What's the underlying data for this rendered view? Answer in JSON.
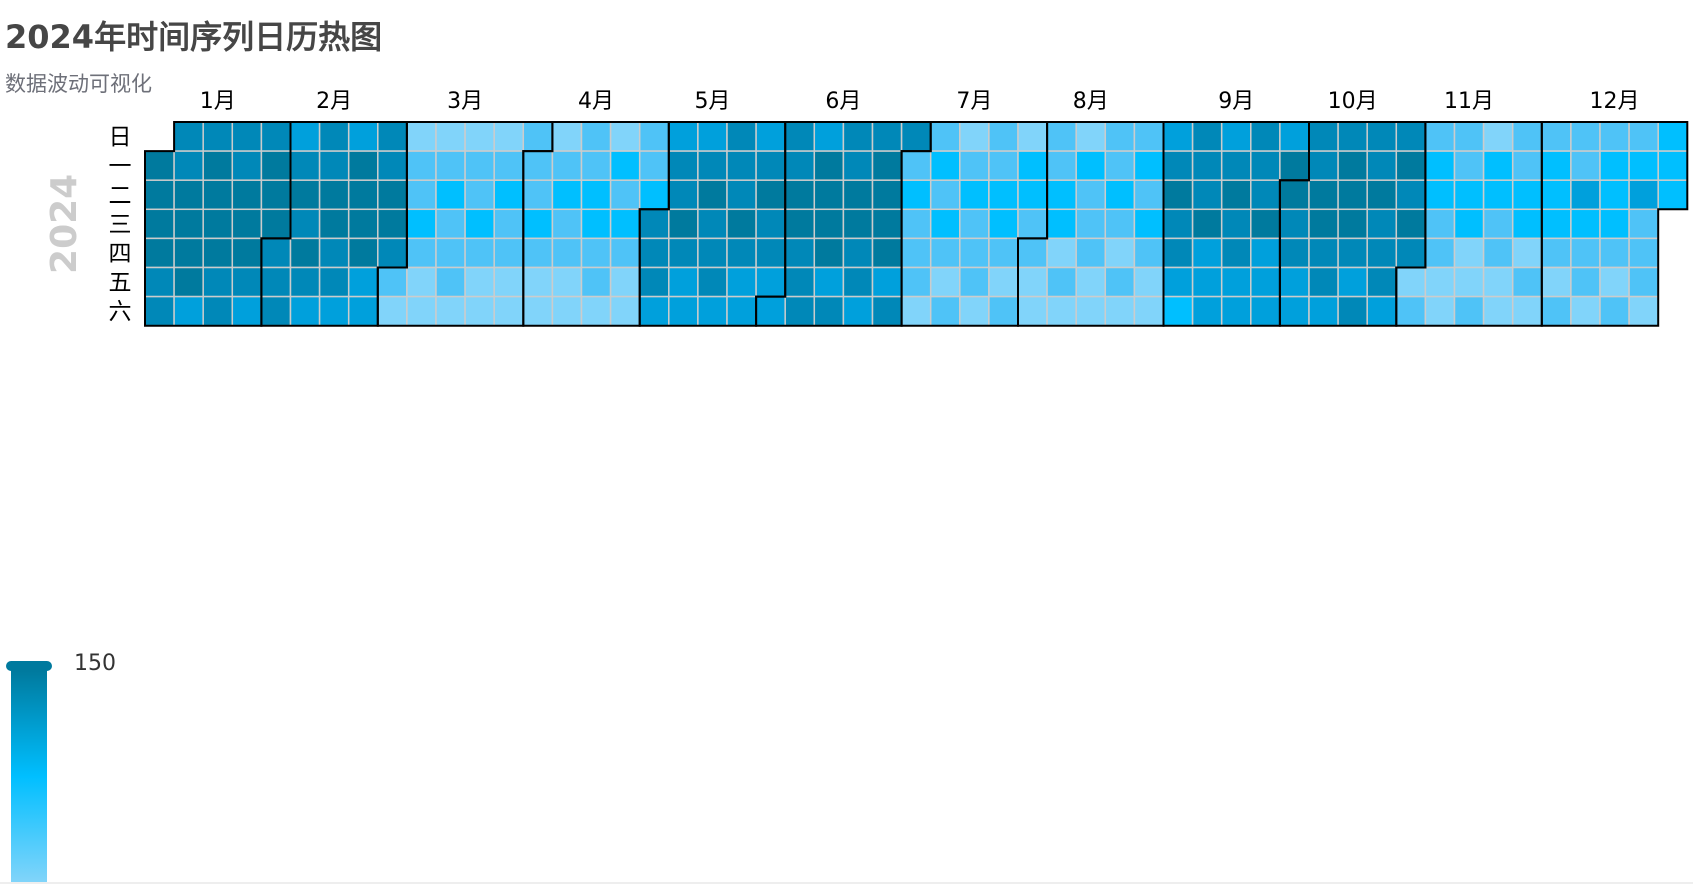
{
  "chart_data": {
    "type": "heatmap",
    "title": "2024年时间序列日历热图",
    "subtitle": "数据波动可视化",
    "year_label": "2024",
    "range": [
      "2024-01-01",
      "2024-12-31"
    ],
    "day_labels": [
      "日",
      "一",
      "二",
      "三",
      "四",
      "五",
      "六"
    ],
    "month_labels": [
      "1月",
      "2月",
      "3月",
      "4月",
      "5月",
      "6月",
      "7月",
      "8月",
      "9月",
      "10月",
      "11月",
      "12月"
    ],
    "visual_map": {
      "min": 0,
      "max": 150,
      "max_label": "150",
      "colors": [
        "#b3e5fc",
        "#81d4fa",
        "#4fc3f7",
        "#00bfff",
        "#00a0dc",
        "#0088b8",
        "#007a9e"
      ]
    },
    "monthly_average_values": [
      130,
      120,
      50,
      50,
      115,
      125,
      55,
      50,
      110,
      120,
      55,
      60
    ],
    "colors": {
      "month_split_line": "#000000",
      "cell_border": "#cccccc",
      "title": "#464646",
      "subtitle": "#6e7079",
      "year_label": "#cccccc"
    }
  }
}
